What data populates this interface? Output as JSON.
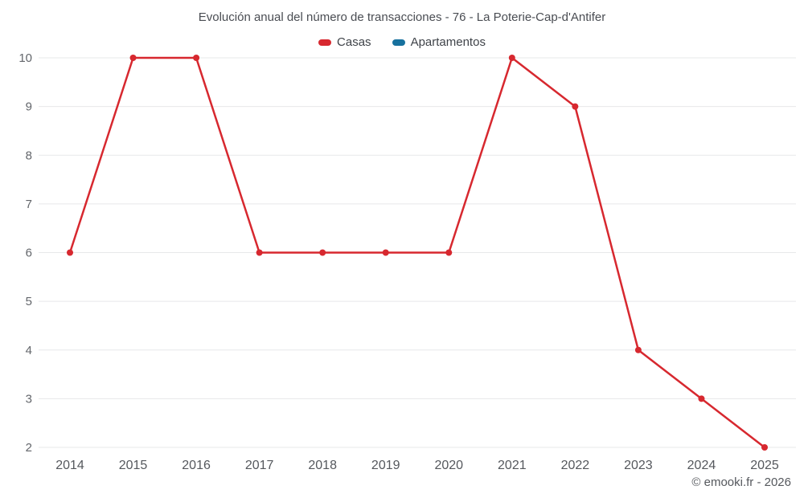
{
  "chart_data": {
    "type": "line",
    "title": "Evolución anual del número de transacciones - 76 - La Poterie-Cap-d'Antifer",
    "categories": [
      "2014",
      "2015",
      "2016",
      "2017",
      "2018",
      "2019",
      "2020",
      "2021",
      "2022",
      "2023",
      "2024",
      "2025"
    ],
    "series": [
      {
        "name": "Casas",
        "color": "#d7282f",
        "values": [
          6,
          10,
          10,
          6,
          6,
          6,
          6,
          10,
          9,
          4,
          3,
          2
        ]
      },
      {
        "name": "Apartamentos",
        "color": "#17719e",
        "values": []
      }
    ],
    "ylim": [
      2,
      10
    ],
    "y_ticks": [
      2,
      3,
      4,
      5,
      6,
      7,
      8,
      9,
      10
    ],
    "grid": true,
    "grid_color": "#e7e8ea",
    "legend_position": "top",
    "xlabel": "",
    "ylabel": ""
  },
  "footer": {
    "credit": "© emooki.fr - 2026"
  }
}
